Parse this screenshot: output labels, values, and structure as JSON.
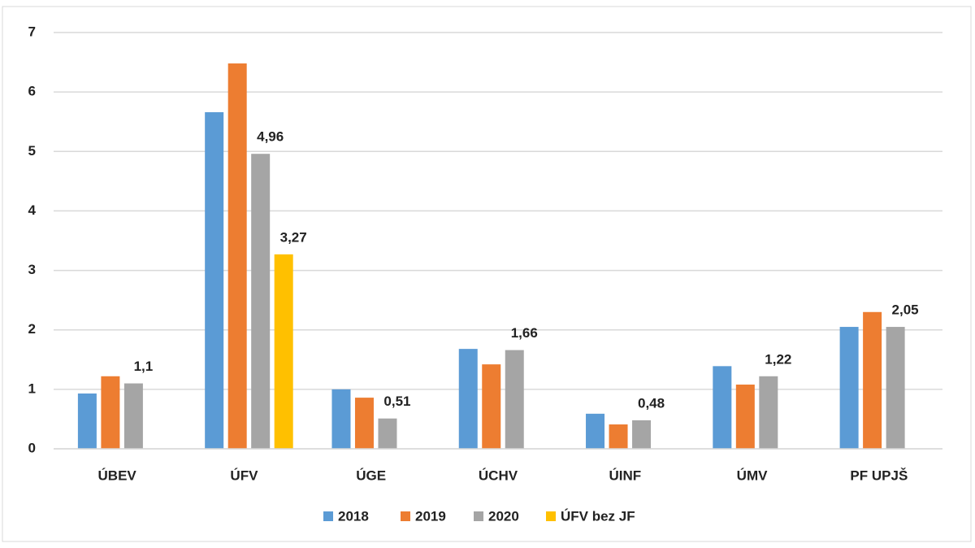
{
  "chart_data": {
    "type": "bar",
    "categories": [
      "ÚBEV",
      "ÚFV",
      "ÚGE",
      "ÚCHV",
      "ÚINF",
      "ÚMV",
      "PF UPJŠ"
    ],
    "series": [
      {
        "name": "2018",
        "color": "#5b9bd5",
        "values": [
          0.93,
          5.66,
          1.0,
          1.68,
          0.59,
          1.39,
          2.05
        ]
      },
      {
        "name": "2019",
        "color": "#ed7d31",
        "values": [
          1.22,
          6.48,
          0.86,
          1.42,
          0.41,
          1.08,
          2.3
        ]
      },
      {
        "name": "2020",
        "color": "#a5a5a5",
        "values": [
          1.1,
          4.96,
          0.51,
          1.66,
          0.48,
          1.22,
          2.05
        ],
        "value_labels": [
          "1,1",
          "4,96",
          "0,51",
          "1,66",
          "0,48",
          "1,22",
          "2,05"
        ]
      },
      {
        "name": "ÚFV bez JF",
        "color": "#ffc000",
        "values": [
          null,
          3.27,
          null,
          null,
          null,
          null,
          null
        ],
        "value_labels": [
          null,
          "3,27",
          null,
          null,
          null,
          null,
          null
        ]
      }
    ],
    "ylim": [
      0,
      7
    ],
    "yticks": [
      0,
      1,
      2,
      3,
      4,
      5,
      6,
      7
    ],
    "grid": true,
    "legend": "bottom"
  }
}
